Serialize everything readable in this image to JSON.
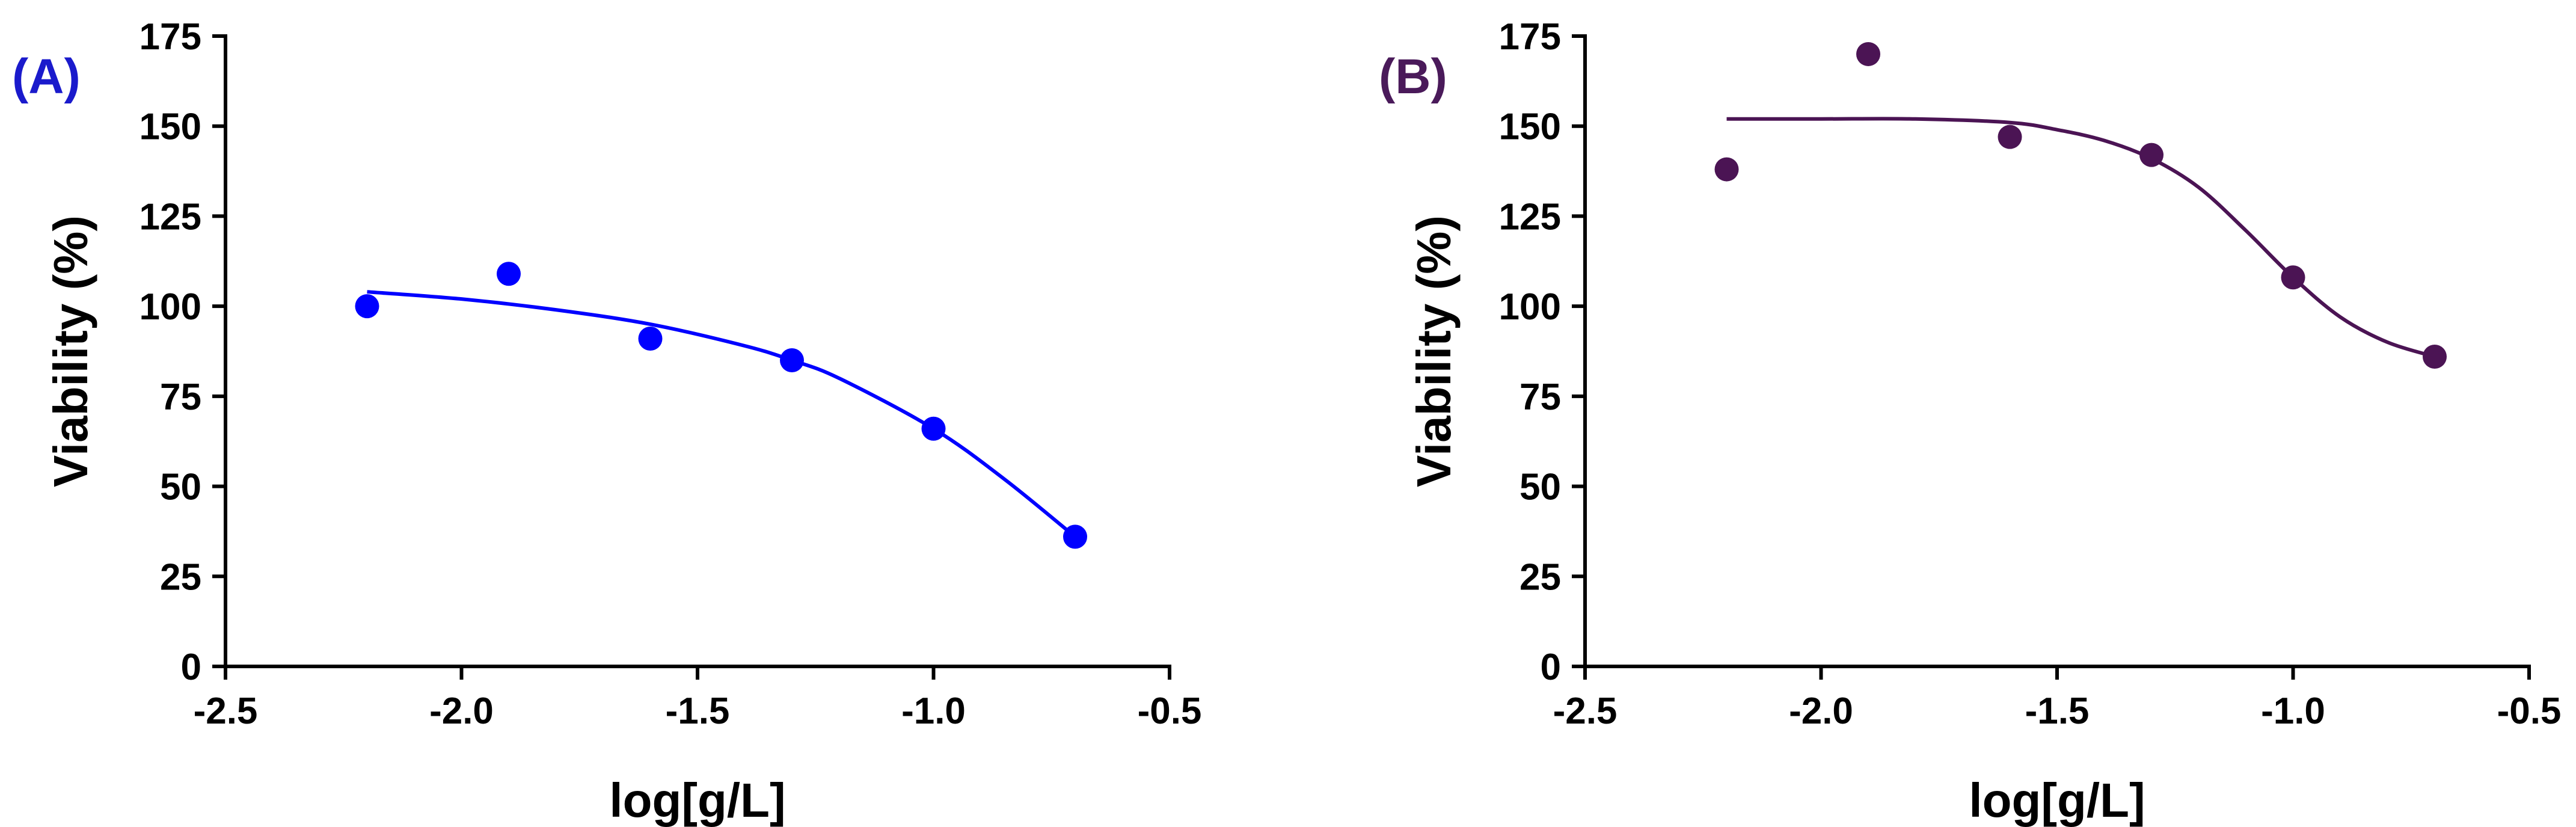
{
  "chart_data": [
    {
      "type": "scatter",
      "panel_label": "(A)",
      "label_color": "#1a1acc",
      "color": "#0000ff",
      "xlabel": "log[g/L]",
      "ylabel": "Viability (%)",
      "xlim": [
        -2.5,
        -0.5
      ],
      "ylim": [
        0,
        175
      ],
      "xticks": [
        -2.5,
        -2.0,
        -1.5,
        -1.0,
        -0.5
      ],
      "xtick_labels": [
        "-2.5",
        "-2.0",
        "-1.5",
        "-1.0",
        "-0.5"
      ],
      "yticks": [
        0,
        25,
        50,
        75,
        100,
        125,
        150,
        175
      ],
      "ytick_labels": [
        "0",
        "25",
        "50",
        "75",
        "100",
        "125",
        "150",
        "175"
      ],
      "grid": false,
      "points": {
        "x": [
          -2.2,
          -1.9,
          -1.6,
          -1.3,
          -1.0,
          -0.7
        ],
        "y": [
          100,
          109,
          91,
          85,
          66,
          36
        ]
      },
      "fit_curve": {
        "x": [
          -2.2,
          -2.0,
          -1.8,
          -1.6,
          -1.4,
          -1.3,
          -1.2,
          -1.0,
          -0.85,
          -0.7
        ],
        "y": [
          104,
          102,
          99,
          95,
          89,
          85,
          80,
          66,
          52,
          36
        ]
      }
    },
    {
      "type": "scatter",
      "panel_label": "(B)",
      "label_color": "#4a1a5a",
      "color": "#4b1454",
      "xlabel": "log[g/L]",
      "ylabel": "Viability (%)",
      "xlim": [
        -2.5,
        -0.5
      ],
      "ylim": [
        0,
        175
      ],
      "xticks": [
        -2.5,
        -2.0,
        -1.5,
        -1.0,
        -0.5
      ],
      "xtick_labels": [
        "-2.5",
        "-2.0",
        "-1.5",
        "-1.0",
        "-0.5"
      ],
      "yticks": [
        0,
        25,
        50,
        75,
        100,
        125,
        150,
        175
      ],
      "ytick_labels": [
        "0",
        "25",
        "50",
        "75",
        "100",
        "125",
        "150",
        "175"
      ],
      "grid": false,
      "points": {
        "x": [
          -2.2,
          -1.9,
          -1.6,
          -1.3,
          -1.0,
          -0.7
        ],
        "y": [
          138,
          170,
          147,
          142,
          108,
          86
        ]
      },
      "fit_curve": {
        "x": [
          -2.2,
          -2.0,
          -1.8,
          -1.6,
          -1.5,
          -1.4,
          -1.3,
          -1.2,
          -1.1,
          -1.0,
          -0.9,
          -0.8,
          -0.7
        ],
        "y": [
          152,
          152,
          152,
          151,
          149,
          146,
          141,
          133,
          121,
          108,
          97,
          90,
          86
        ]
      }
    }
  ]
}
